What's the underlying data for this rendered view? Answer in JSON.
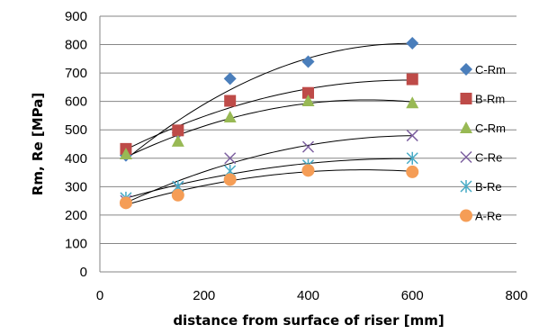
{
  "chart_data": {
    "type": "scatter",
    "title": "",
    "xlabel": "distance from surface of riser [mm]",
    "ylabel": "Rm, Re [MPa]",
    "xlim": [
      0,
      800
    ],
    "ylim": [
      0,
      900
    ],
    "x_ticks": [
      "0",
      "200",
      "400",
      "600",
      "800"
    ],
    "y_ticks": [
      "0",
      "100",
      "200",
      "300",
      "400",
      "500",
      "600",
      "700",
      "800",
      "900"
    ],
    "grid": "horizontal",
    "legend_position": "right",
    "trendlines": "polynomial",
    "series": [
      {
        "name": "C-Rm",
        "marker": "diamond",
        "color": "#4a7ebb",
        "points": [
          [
            50,
            410
          ],
          [
            150,
            490
          ],
          [
            250,
            680
          ],
          [
            400,
            740
          ],
          [
            600,
            805
          ]
        ]
      },
      {
        "name": "B-Rm",
        "marker": "square",
        "color": "#be4b48",
        "points": [
          [
            50,
            433
          ],
          [
            150,
            498
          ],
          [
            250,
            602
          ],
          [
            400,
            630
          ],
          [
            600,
            678
          ]
        ]
      },
      {
        "name": "C-Rm",
        "marker": "triangle",
        "color": "#98b954",
        "points": [
          [
            50,
            415
          ],
          [
            150,
            460
          ],
          [
            250,
            545
          ],
          [
            400,
            602
          ],
          [
            600,
            595
          ]
        ]
      },
      {
        "name": "C-Re",
        "marker": "x",
        "color": "#7d60a0",
        "points": [
          [
            50,
            250
          ],
          [
            150,
            300
          ],
          [
            250,
            400
          ],
          [
            400,
            440
          ],
          [
            600,
            480
          ]
        ]
      },
      {
        "name": "B-Re",
        "marker": "star",
        "color": "#46aac5",
        "points": [
          [
            50,
            260
          ],
          [
            150,
            300
          ],
          [
            250,
            355
          ],
          [
            400,
            375
          ],
          [
            600,
            400
          ]
        ]
      },
      {
        "name": "A-Re",
        "marker": "circle",
        "color": "#f59d56",
        "points": [
          [
            50,
            243
          ],
          [
            150,
            270
          ],
          [
            250,
            325
          ],
          [
            400,
            357
          ],
          [
            600,
            352
          ]
        ]
      }
    ]
  }
}
